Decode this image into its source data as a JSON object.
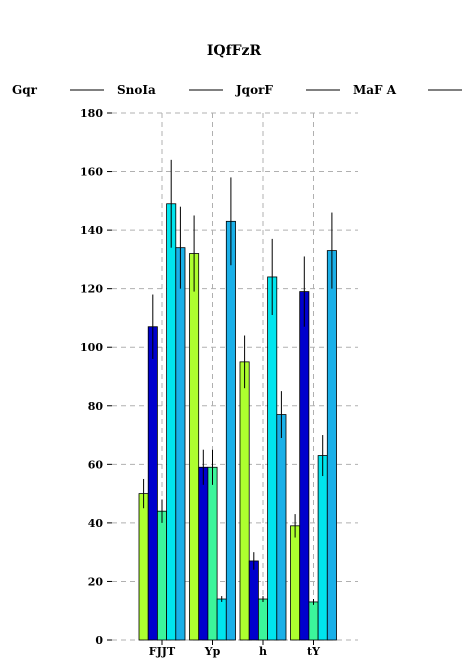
{
  "chart_data": {
    "type": "bar",
    "title": "IQfFzR",
    "xlabel": "",
    "ylabel": "",
    "categories": [
      "FJJT",
      "Yp",
      "h",
      "tY"
    ],
    "ylim": [
      0,
      180
    ],
    "yticks": [
      0,
      20,
      40,
      60,
      80,
      100,
      120,
      140,
      160,
      180
    ],
    "grid": true,
    "legend_position": "top",
    "series": [
      {
        "name": "Gqr",
        "color": "#adff2f",
        "values": [
          50,
          132,
          95,
          39
        ],
        "errors": [
          5,
          13,
          9,
          4
        ]
      },
      {
        "name": "SnoIa",
        "color": "#0000cd",
        "values": [
          107,
          59,
          27,
          119
        ],
        "errors": [
          11,
          6,
          3,
          12
        ]
      },
      {
        "name": "JqorF",
        "color": "#3cf59b",
        "values": [
          44,
          59,
          14,
          13
        ],
        "errors": [
          4,
          6,
          1,
          1
        ]
      },
      {
        "name": "MaF A",
        "color": "#00e5ee",
        "values": [
          149,
          14,
          124,
          63
        ],
        "errors": [
          15,
          1,
          13,
          7
        ]
      },
      {
        "name": "",
        "color": "#1ab0e8",
        "values": [
          134,
          143,
          77,
          133
        ],
        "errors": [
          14,
          15,
          8,
          13
        ]
      }
    ]
  }
}
